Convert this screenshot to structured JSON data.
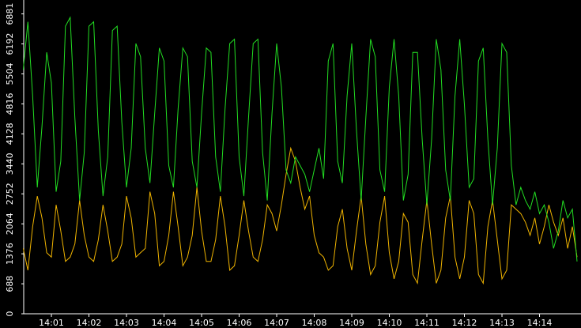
{
  "chart_data": {
    "type": "line",
    "categories": [
      null,
      null,
      null,
      null,
      null,
      null,
      "14:01",
      null,
      null,
      null,
      null,
      null,
      null,
      null,
      "14:02",
      null,
      null,
      null,
      null,
      null,
      null,
      null,
      "14:03",
      null,
      null,
      null,
      null,
      null,
      null,
      null,
      "14:04",
      null,
      null,
      null,
      null,
      null,
      null,
      null,
      "14:05",
      null,
      null,
      null,
      null,
      null,
      null,
      null,
      "14:06",
      null,
      null,
      null,
      null,
      null,
      null,
      null,
      "14:07",
      null,
      null,
      null,
      null,
      null,
      null,
      null,
      "14:08",
      null,
      null,
      null,
      null,
      null,
      null,
      null,
      "14:09",
      null,
      null,
      null,
      null,
      null,
      null,
      null,
      "14:10",
      null,
      null,
      null,
      null,
      null,
      null,
      null,
      "14:11",
      null,
      null,
      null,
      null,
      null,
      null,
      null,
      "14:12",
      null,
      null,
      null,
      null,
      null,
      null,
      null,
      "14:13",
      null,
      null,
      null,
      null,
      null,
      null,
      null,
      "14:14",
      null,
      null,
      null,
      null,
      null,
      null,
      null,
      null
    ],
    "series": [
      {
        "color": "#22dd22",
        "values": [
          5600,
          6700,
          5000,
          2900,
          4300,
          6000,
          5300,
          2800,
          3500,
          6600,
          6800,
          4500,
          2600,
          3700,
          6600,
          6700,
          4200,
          2700,
          3600,
          6500,
          6600,
          4400,
          2900,
          3800,
          6200,
          5900,
          3800,
          3000,
          4600,
          6100,
          5800,
          3400,
          2900,
          4700,
          6100,
          5900,
          3500,
          2900,
          4600,
          6100,
          6000,
          3600,
          2800,
          4700,
          6200,
          6300,
          3600,
          2700,
          4500,
          6200,
          6300,
          3700,
          2600,
          4600,
          6200,
          5200,
          3300,
          3000,
          3600,
          3400,
          3200,
          2800,
          3300,
          3800,
          3100,
          5800,
          6200,
          3500,
          3000,
          5000,
          6200,
          4200,
          2600,
          4500,
          6300,
          5900,
          3300,
          2800,
          5200,
          6300,
          5000,
          2600,
          3200,
          6000,
          6000,
          4000,
          2500,
          4000,
          6300,
          5600,
          3300,
          2600,
          5000,
          6300,
          4800,
          2900,
          3100,
          5800,
          6100,
          4000,
          2500,
          3800,
          6200,
          6000,
          3400,
          2500,
          2900,
          2600,
          2400,
          2800,
          2300,
          2500,
          2100,
          1500,
          1900,
          2600,
          2200,
          2400,
          1200
        ]
      },
      {
        "color": "#f0b400",
        "values": [
          1500,
          1000,
          2000,
          2700,
          2200,
          1400,
          1300,
          2500,
          1900,
          1200,
          1300,
          1600,
          2600,
          1800,
          1300,
          1200,
          1700,
          2500,
          1900,
          1200,
          1300,
          1600,
          2700,
          2200,
          1300,
          1400,
          1500,
          2800,
          2300,
          1100,
          1200,
          1800,
          2800,
          2000,
          1100,
          1300,
          1800,
          2900,
          1900,
          1200,
          1200,
          1700,
          2700,
          2000,
          1000,
          1100,
          1800,
          2600,
          1900,
          1300,
          1200,
          1700,
          2500,
          2300,
          1900,
          2500,
          3200,
          3800,
          3500,
          2900,
          2400,
          2700,
          1800,
          1400,
          1300,
          1000,
          1100,
          2000,
          2400,
          1500,
          1000,
          1900,
          2700,
          1600,
          900,
          1100,
          2100,
          2700,
          1400,
          800,
          1200,
          2300,
          2100,
          900,
          700,
          1700,
          2600,
          1600,
          700,
          1000,
          2200,
          2700,
          1300,
          800,
          1300,
          2600,
          2300,
          900,
          700,
          2000,
          2600,
          1700,
          800,
          1000,
          2500,
          2400,
          2300,
          2100,
          1800,
          2200,
          1600,
          2000,
          2500,
          2100,
          1800,
          2200,
          1500,
          2000,
          1300
        ]
      }
    ],
    "ylim": [
      0,
      7200
    ],
    "yticks": [
      0,
      688,
      1376,
      2064,
      2752,
      3440,
      4128,
      4816,
      5504,
      6192,
      6881
    ]
  }
}
